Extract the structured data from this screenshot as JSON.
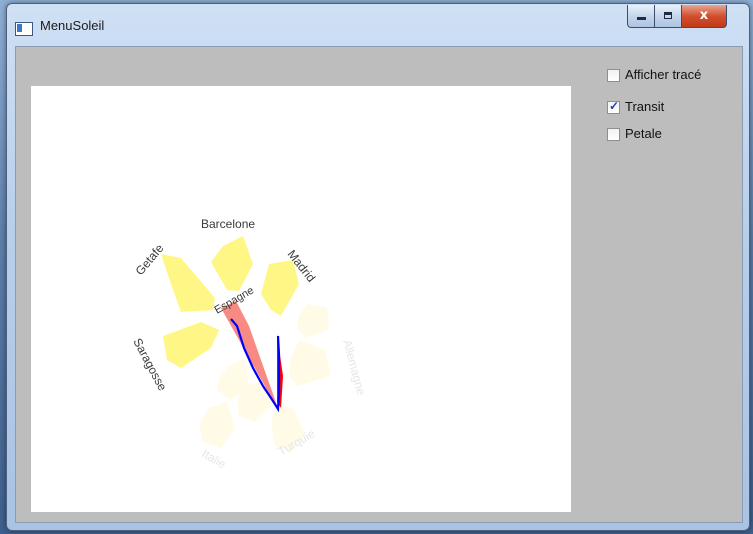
{
  "window": {
    "title": "MenuSoleil"
  },
  "caption_buttons": {
    "close_glyph": "x"
  },
  "options": [
    {
      "label": "Afficher tracé",
      "checked": false
    },
    {
      "label": "Transit",
      "checked": true
    },
    {
      "label": "Petale",
      "checked": false
    }
  ],
  "sun_menu": {
    "center_label": "Espagne",
    "petals": [
      {
        "label": "Barcelone",
        "highlighted": true
      },
      {
        "label": "Madrid",
        "highlighted": true
      },
      {
        "label": "Getafe",
        "highlighted": true
      },
      {
        "label": "Saragosse",
        "highlighted": true
      },
      {
        "label": "Allemagne",
        "highlighted": false
      },
      {
        "label": "Turquie",
        "highlighted": false
      },
      {
        "label": "Italie",
        "highlighted": false
      }
    ],
    "colors": {
      "petal_active": "#fff785",
      "petal_faded": "#fffbe6",
      "label_active": "#3a3a3a",
      "label_faded": "#e6e6e6",
      "transit_fill": "#f7766f",
      "cursor_red": "#ff0000",
      "trace_blue": "#0000ff"
    }
  }
}
